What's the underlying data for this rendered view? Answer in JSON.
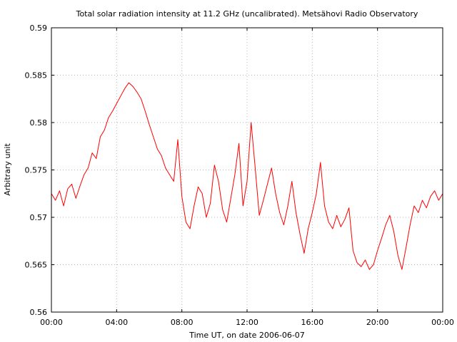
{
  "chart_data": {
    "type": "line",
    "title": "Total solar radiation intensity at 11.2 GHz (uncalibrated). Metsähovi Radio Observatory",
    "xlabel": "Time UT, on date 2006-06-07",
    "ylabel": "Arbitrary unit",
    "xlim": [
      0,
      24
    ],
    "ylim": [
      0.56,
      0.59
    ],
    "x_ticks": [
      0,
      4,
      8,
      12,
      16,
      20,
      24
    ],
    "x_tick_labels": [
      "00:00",
      "04:00",
      "08:00",
      "12:00",
      "16:00",
      "20:00",
      "00:00"
    ],
    "y_ticks": [
      0.56,
      0.565,
      0.57,
      0.575,
      0.58,
      0.585,
      0.59
    ],
    "y_tick_labels": [
      "0.56",
      "0.565",
      "0.57",
      "0.575",
      "0.58",
      "0.585",
      "0.59"
    ],
    "grid": true,
    "series_color": "#ff0000",
    "series": [
      {
        "x": [
          0.0,
          0.25,
          0.5,
          0.75,
          1.0,
          1.25,
          1.5,
          1.75,
          2.0,
          2.25,
          2.5,
          2.75,
          3.0,
          3.25,
          3.5,
          3.75,
          4.0,
          4.25,
          4.5,
          4.75,
          5.0,
          5.25,
          5.5,
          5.75,
          6.0,
          6.25,
          6.5,
          6.75,
          7.0,
          7.25,
          7.5,
          7.75,
          8.0,
          8.25,
          8.5,
          8.75,
          9.0,
          9.25,
          9.5,
          9.75,
          10.0,
          10.25,
          10.5,
          10.75,
          11.0,
          11.25,
          11.5,
          11.75,
          12.0,
          12.25,
          12.5,
          12.75,
          13.0,
          13.25,
          13.5,
          13.75,
          14.0,
          14.25,
          14.5,
          14.75,
          15.0,
          15.25,
          15.5,
          15.75,
          16.0,
          16.25,
          16.5,
          16.75,
          17.0,
          17.25,
          17.5,
          17.75,
          18.0,
          18.25,
          18.5,
          18.75,
          19.0,
          19.25,
          19.5,
          19.75,
          20.0,
          20.25,
          20.5,
          20.75,
          21.0,
          21.25,
          21.5,
          21.75,
          22.0,
          22.25,
          22.5,
          22.75,
          23.0,
          23.25,
          23.5,
          23.75,
          24.0
        ],
        "y": [
          0.5725,
          0.5718,
          0.5728,
          0.5712,
          0.573,
          0.5735,
          0.572,
          0.5733,
          0.5745,
          0.5752,
          0.5768,
          0.5762,
          0.5785,
          0.5792,
          0.5805,
          0.5812,
          0.582,
          0.5828,
          0.5836,
          0.5842,
          0.5838,
          0.5832,
          0.5825,
          0.5812,
          0.5798,
          0.5785,
          0.5772,
          0.5765,
          0.5752,
          0.5745,
          0.5738,
          0.5782,
          0.5722,
          0.5695,
          0.5688,
          0.5712,
          0.5732,
          0.5725,
          0.57,
          0.5715,
          0.5755,
          0.5738,
          0.5708,
          0.5695,
          0.572,
          0.5745,
          0.5778,
          0.5712,
          0.5738,
          0.58,
          0.5752,
          0.5702,
          0.5718,
          0.5735,
          0.5752,
          0.5725,
          0.5705,
          0.5692,
          0.5712,
          0.5738,
          0.5705,
          0.5682,
          0.5662,
          0.5688,
          0.5705,
          0.5725,
          0.5758,
          0.5712,
          0.5695,
          0.5688,
          0.5702,
          0.569,
          0.5698,
          0.571,
          0.5665,
          0.5652,
          0.5648,
          0.5655,
          0.5645,
          0.565,
          0.5665,
          0.5678,
          0.5692,
          0.5702,
          0.5685,
          0.566,
          0.5645,
          0.5668,
          0.5692,
          0.5712,
          0.5705,
          0.5718,
          0.571,
          0.5722,
          0.5728,
          0.5718,
          0.5725
        ]
      }
    ]
  }
}
